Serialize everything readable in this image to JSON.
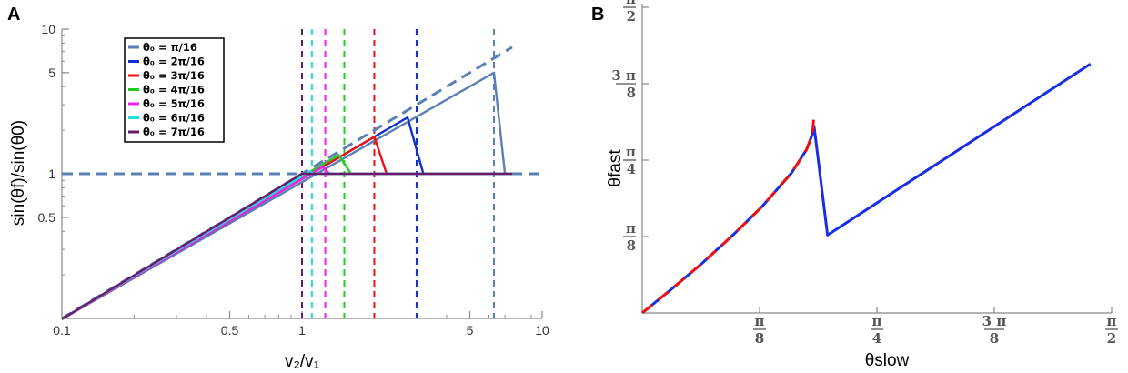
{
  "chart_data": [
    {
      "panel": "A",
      "type": "line",
      "xlabel": "v₂/v₁",
      "ylabel": "sin(θf)/sin(θ0)",
      "xscale": "log",
      "yscale": "log",
      "xlim": [
        0.1,
        10
      ],
      "ylim": [
        0.1,
        10
      ],
      "x_ticks": [
        0.1,
        0.5,
        1,
        5,
        10
      ],
      "x_tick_labels": [
        "0.1",
        "0.5",
        "1",
        "5",
        "10"
      ],
      "y_ticks": [
        0.5,
        1,
        5,
        10
      ],
      "y_tick_labels": [
        "0.5",
        "1",
        "5",
        "10"
      ],
      "legend_placement": "top-left",
      "reference_lines": [
        {
          "kind": "y = x",
          "style": "dashed",
          "color": "#5a7fb5"
        },
        {
          "kind": "y = 1",
          "style": "dashed",
          "color": "#5a7fb5"
        }
      ],
      "series": [
        {
          "name": "θ₀ = π/16",
          "color": "#5a7fb5",
          "critical_x": 6.3,
          "drop_end": [
            7.0,
            1.0
          ],
          "peak": [
            6.3,
            5.0
          ]
        },
        {
          "name": "θ₀ = 2π/16",
          "color": "#1030d0",
          "critical_x": 3.0,
          "drop_end": [
            3.2,
            1.0
          ],
          "peak": [
            2.75,
            2.45
          ]
        },
        {
          "name": "θ₀ = 3π/16",
          "color": "#ee1111",
          "critical_x": 2.0,
          "drop_end": [
            2.25,
            1.0
          ],
          "peak": [
            2.0,
            1.8
          ]
        },
        {
          "name": "θ₀ = 4π/16",
          "color": "#22cc22",
          "critical_x": 1.5,
          "drop_end": [
            1.6,
            1.0
          ],
          "peak": [
            1.42,
            1.35
          ]
        },
        {
          "name": "θ₀ = 5π/16",
          "color": "#ee22ee",
          "critical_x": 1.25,
          "drop_end": [
            1.3,
            1.0
          ],
          "peak": [
            1.22,
            1.12
          ]
        },
        {
          "name": "θ₀ = 6π/16",
          "color": "#22dddd",
          "critical_x": 1.1,
          "drop_end": [
            1.12,
            1.0
          ],
          "peak": [
            1.08,
            1.04
          ]
        },
        {
          "name": "θ₀ = 7π/16",
          "color": "#6a1a6a",
          "critical_x": 1.0,
          "drop_end": [
            1.0,
            1.0
          ],
          "peak": [
            1.0,
            1.0
          ]
        }
      ],
      "flat_line_end_x": 7.5,
      "dashed_reference_end_x": 10
    },
    {
      "panel": "B",
      "type": "line",
      "xlabel": "θslow",
      "ylabel": "θfast",
      "xlim": [
        0,
        1.5708
      ],
      "ylim": [
        0,
        1.5708
      ],
      "x_ticks": [
        0.3927,
        0.7854,
        1.1781,
        1.5708
      ],
      "x_tick_labels": [
        [
          "π",
          "8"
        ],
        [
          "π",
          "4"
        ],
        [
          "3 π",
          "8"
        ],
        [
          "π",
          "2"
        ]
      ],
      "y_ticks": [
        0.3927,
        0.7854,
        1.1781,
        1.5708
      ],
      "y_tick_labels": [
        [
          "π",
          "8"
        ],
        [
          "π",
          "4"
        ],
        [
          "3 π",
          "8"
        ],
        [
          "π",
          "2"
        ]
      ],
      "series": [
        {
          "color": "#1a2ee6",
          "style": "solid",
          "x": [
            0,
            0.1,
            0.2,
            0.3,
            0.4,
            0.5,
            0.55,
            0.57,
            0.575,
            0.62,
            0.8,
            1.0,
            1.2,
            1.4,
            1.5
          ],
          "y": [
            0,
            0.125,
            0.255,
            0.395,
            0.545,
            0.72,
            0.84,
            0.92,
            0.96,
            0.4,
            0.58,
            0.78,
            0.98,
            1.18,
            1.28
          ]
        },
        {
          "color": "#ee1111",
          "style": "dashed",
          "x": [
            0,
            0.1,
            0.2,
            0.3,
            0.4,
            0.5,
            0.55,
            0.57,
            0.575
          ],
          "y": [
            0,
            0.125,
            0.255,
            0.395,
            0.545,
            0.72,
            0.84,
            0.92,
            1.02
          ]
        }
      ]
    }
  ]
}
